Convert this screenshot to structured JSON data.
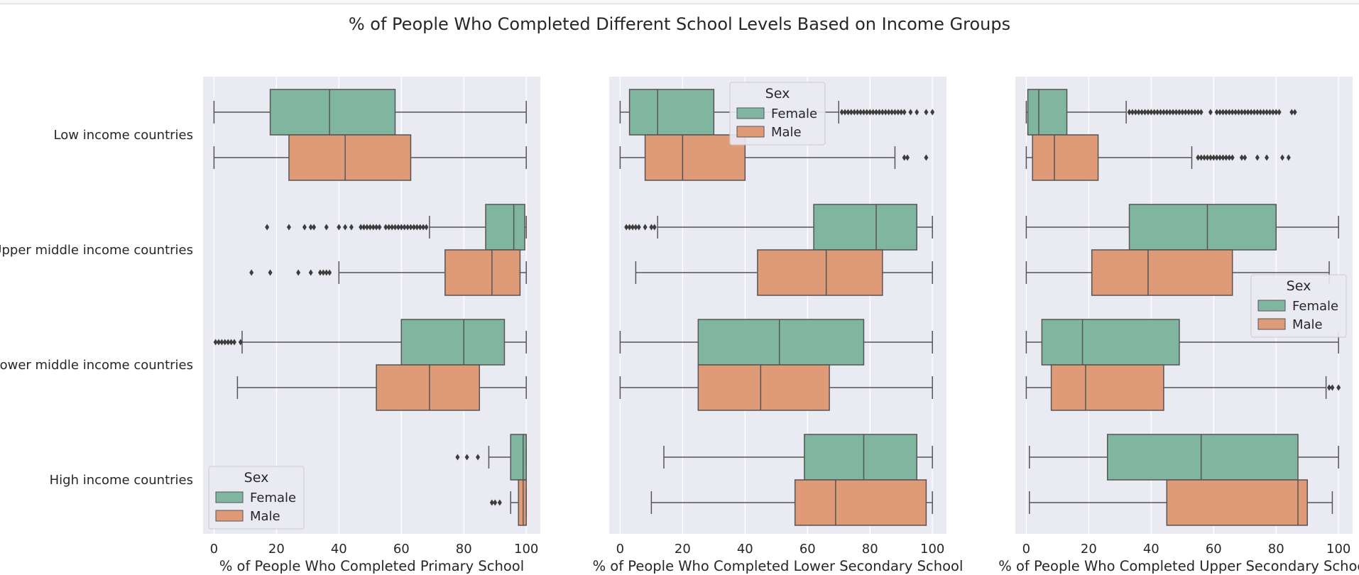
{
  "chart_data": {
    "title": "% of People Who Completed Different School Levels Based on Income Groups",
    "type": "boxplot",
    "categories": [
      "Low income countries",
      "Upper middle income countries",
      "Lower middle income countries",
      "High income countries"
    ],
    "legend_title": "Sex",
    "series": [
      {
        "name": "Female",
        "color": "#80b6a0",
        "edge": "#4d4d4d"
      },
      {
        "name": "Male",
        "color": "#df9a77",
        "edge": "#4d4d4d"
      }
    ],
    "xlim": [
      -3.5,
      104.5
    ],
    "xticks": [
      0,
      20,
      40,
      60,
      80,
      100
    ],
    "xtick_labels": [
      "0",
      "20",
      "40",
      "60",
      "80",
      "100"
    ],
    "grid": true,
    "facets": [
      {
        "xlabel": "% of People Who Completed Primary School",
        "legend_loc": "lower-left",
        "boxes": [
          {
            "category": 0,
            "sex": "Female",
            "whislo": 0,
            "q1": 18,
            "median": 37,
            "q3": 58,
            "whishi": 100,
            "fliers": []
          },
          {
            "category": 0,
            "sex": "Male",
            "whislo": 0,
            "q1": 24,
            "median": 42,
            "q3": 63,
            "whishi": 100,
            "fliers": []
          },
          {
            "category": 1,
            "sex": "Female",
            "whislo": 69,
            "q1": 87,
            "median": 96,
            "q3": 99.5,
            "whishi": 100,
            "fliers": [
              17,
              24,
              29,
              31,
              32,
              36,
              40,
              42,
              44,
              47,
              48,
              49,
              50,
              51,
              52,
              53,
              55,
              56,
              57,
              58,
              59,
              60,
              61,
              62,
              63,
              64,
              65,
              66,
              67,
              68
            ]
          },
          {
            "category": 1,
            "sex": "Male",
            "whislo": 40,
            "q1": 74,
            "median": 89,
            "q3": 98,
            "whishi": 100,
            "fliers": [
              12,
              18,
              27,
              31,
              34,
              35,
              36,
              37
            ]
          },
          {
            "category": 2,
            "sex": "Female",
            "whislo": 9,
            "q1": 60,
            "median": 80,
            "q3": 93,
            "whishi": 100,
            "fliers": [
              0.5,
              1.5,
              2.5,
              3.5,
              4.5,
              5.5,
              6.5,
              8.5
            ]
          },
          {
            "category": 2,
            "sex": "Male",
            "whislo": 7.5,
            "q1": 52,
            "median": 69,
            "q3": 85,
            "whishi": 100,
            "fliers": []
          },
          {
            "category": 3,
            "sex": "Female",
            "whislo": 88,
            "q1": 95,
            "median": 99,
            "q3": 100,
            "whishi": 100,
            "fliers": [
              78,
              81,
              84.5
            ]
          },
          {
            "category": 3,
            "sex": "Male",
            "whislo": 95,
            "q1": 97.5,
            "median": 99,
            "q3": 100,
            "whishi": 100,
            "fliers": [
              89,
              90,
              91.5
            ]
          }
        ]
      },
      {
        "xlabel": "% of People Who Completed Lower Secondary School",
        "legend_loc": "upper-center",
        "boxes": [
          {
            "category": 0,
            "sex": "Female",
            "whislo": 0,
            "q1": 3,
            "median": 12,
            "q3": 30,
            "whishi": 70,
            "fliers": [
              71,
              72,
              73,
              74,
              75,
              76,
              77,
              78,
              79,
              80,
              81,
              82,
              83,
              84,
              85,
              86,
              87,
              88,
              89,
              90,
              91,
              93,
              95,
              98,
              100
            ]
          },
          {
            "category": 0,
            "sex": "Male",
            "whislo": 0,
            "q1": 8,
            "median": 20,
            "q3": 40,
            "whishi": 88,
            "fliers": [
              91,
              92,
              98
            ]
          },
          {
            "category": 1,
            "sex": "Female",
            "whislo": 12,
            "q1": 62,
            "median": 82,
            "q3": 95,
            "whishi": 100,
            "fliers": [
              2,
              3,
              4,
              5,
              6,
              8,
              10,
              11
            ]
          },
          {
            "category": 1,
            "sex": "Male",
            "whislo": 5,
            "q1": 44,
            "median": 66,
            "q3": 84,
            "whishi": 100,
            "fliers": []
          },
          {
            "category": 2,
            "sex": "Female",
            "whislo": 0,
            "q1": 25,
            "median": 51,
            "q3": 78,
            "whishi": 100,
            "fliers": []
          },
          {
            "category": 2,
            "sex": "Male",
            "whislo": 0,
            "q1": 25,
            "median": 45,
            "q3": 67,
            "whishi": 100,
            "fliers": []
          },
          {
            "category": 3,
            "sex": "Female",
            "whislo": 14,
            "q1": 59,
            "median": 78,
            "q3": 95,
            "whishi": 100,
            "fliers": []
          },
          {
            "category": 3,
            "sex": "Male",
            "whislo": 10,
            "q1": 56,
            "median": 69,
            "q3": 98,
            "whishi": 100,
            "fliers": []
          }
        ]
      },
      {
        "xlabel": "% of People Who Completed Upper Secondary School",
        "legend_loc": "center-right",
        "boxes": [
          {
            "category": 0,
            "sex": "Female",
            "whislo": 0,
            "q1": 0.5,
            "median": 4,
            "q3": 13,
            "whishi": 32,
            "fliers": [
              33,
              34,
              35,
              36,
              37,
              38,
              39,
              40,
              41,
              42,
              43,
              44,
              45,
              46,
              47,
              48,
              49,
              50,
              51,
              52,
              53,
              54,
              55,
              56,
              59,
              61,
              62,
              63,
              64,
              65,
              66,
              67,
              68,
              69,
              70,
              71,
              72,
              73,
              74,
              75,
              76,
              77,
              78,
              79,
              80,
              81,
              85,
              86
            ]
          },
          {
            "category": 0,
            "sex": "Male",
            "whislo": 0,
            "q1": 2,
            "median": 9,
            "q3": 23,
            "whishi": 53,
            "fliers": [
              55,
              56,
              57,
              58,
              59,
              60,
              61,
              62,
              63,
              64,
              65,
              66,
              69,
              70,
              74,
              77,
              82,
              84
            ]
          },
          {
            "category": 1,
            "sex": "Female",
            "whislo": 0,
            "q1": 33,
            "median": 58,
            "q3": 80,
            "whishi": 100,
            "fliers": []
          },
          {
            "category": 1,
            "sex": "Male",
            "whislo": 0,
            "q1": 21,
            "median": 39,
            "q3": 66,
            "whishi": 97,
            "fliers": []
          },
          {
            "category": 2,
            "sex": "Female",
            "whislo": 0,
            "q1": 5,
            "median": 18,
            "q3": 49,
            "whishi": 100,
            "fliers": []
          },
          {
            "category": 2,
            "sex": "Male",
            "whislo": 0,
            "q1": 8,
            "median": 19,
            "q3": 44,
            "whishi": 96,
            "fliers": [
              97,
              98,
              100
            ]
          },
          {
            "category": 3,
            "sex": "Female",
            "whislo": 1,
            "q1": 26,
            "median": 56,
            "q3": 87,
            "whishi": 100,
            "fliers": []
          },
          {
            "category": 3,
            "sex": "Male",
            "whislo": 1,
            "q1": 45,
            "median": 87,
            "q3": 90,
            "whishi": 98,
            "fliers": []
          }
        ]
      }
    ]
  }
}
